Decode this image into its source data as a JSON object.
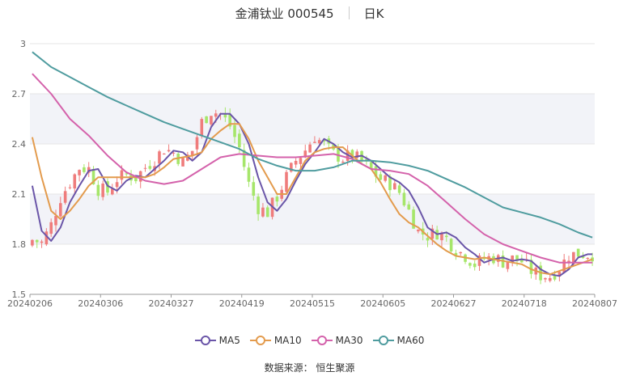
{
  "header": {
    "stock_title": "金浦钛业 000545",
    "period": "日K"
  },
  "source": {
    "label": "数据来源：",
    "value": "恒生聚源"
  },
  "colors": {
    "up": "#ef7c7c",
    "down": "#a6e66a",
    "ma5": "#6a55a8",
    "ma10": "#e39b4d",
    "ma30": "#d462ab",
    "ma60": "#4f9c9f",
    "band": "#f2f3f8",
    "grid": "#e6e6e6"
  },
  "chart_data": {
    "type": "candlestick",
    "ylim": [
      1.5,
      3.0
    ],
    "yticks": [
      "1.5",
      "1.8",
      "2.1",
      "2.4",
      "2.7",
      "3"
    ],
    "xtick_labels": [
      "20240206",
      "20240306",
      "20240327",
      "20240419",
      "20240515",
      "20240605",
      "20240627",
      "20240718",
      "20240807"
    ],
    "num_days": 120,
    "legend": [
      "MA5",
      "MA10",
      "MA30",
      "MA60"
    ],
    "ma_series": [
      {
        "name": "MA5",
        "points": [
          [
            0,
            2.15
          ],
          [
            2,
            1.88
          ],
          [
            4,
            1.82
          ],
          [
            6,
            1.9
          ],
          [
            8,
            2.05
          ],
          [
            10,
            2.15
          ],
          [
            12,
            2.24
          ],
          [
            14,
            2.25
          ],
          [
            16,
            2.15
          ],
          [
            18,
            2.12
          ],
          [
            20,
            2.18
          ],
          [
            22,
            2.21
          ],
          [
            24,
            2.2
          ],
          [
            26,
            2.25
          ],
          [
            28,
            2.3
          ],
          [
            30,
            2.36
          ],
          [
            32,
            2.35
          ],
          [
            34,
            2.3
          ],
          [
            36,
            2.35
          ],
          [
            38,
            2.5
          ],
          [
            40,
            2.58
          ],
          [
            42,
            2.58
          ],
          [
            44,
            2.52
          ],
          [
            46,
            2.4
          ],
          [
            48,
            2.2
          ],
          [
            50,
            2.05
          ],
          [
            52,
            2.0
          ],
          [
            54,
            2.07
          ],
          [
            56,
            2.18
          ],
          [
            58,
            2.28
          ],
          [
            60,
            2.35
          ],
          [
            62,
            2.43
          ],
          [
            64,
            2.4
          ],
          [
            66,
            2.35
          ],
          [
            68,
            2.32
          ],
          [
            70,
            2.33
          ],
          [
            72,
            2.3
          ],
          [
            74,
            2.25
          ],
          [
            76,
            2.2
          ],
          [
            78,
            2.17
          ],
          [
            80,
            2.12
          ],
          [
            82,
            2.02
          ],
          [
            84,
            1.9
          ],
          [
            86,
            1.86
          ],
          [
            88,
            1.87
          ],
          [
            90,
            1.84
          ],
          [
            92,
            1.78
          ],
          [
            94,
            1.74
          ],
          [
            96,
            1.69
          ],
          [
            98,
            1.71
          ],
          [
            100,
            1.72
          ],
          [
            102,
            1.7
          ],
          [
            104,
            1.71
          ],
          [
            106,
            1.7
          ],
          [
            108,
            1.65
          ],
          [
            110,
            1.62
          ],
          [
            112,
            1.61
          ],
          [
            114,
            1.65
          ],
          [
            116,
            1.72
          ],
          [
            118,
            1.74
          ],
          [
            119,
            1.74
          ]
        ]
      },
      {
        "name": "MA10",
        "points": [
          [
            0,
            2.44
          ],
          [
            2,
            2.2
          ],
          [
            4,
            2.0
          ],
          [
            6,
            1.95
          ],
          [
            8,
            2.0
          ],
          [
            10,
            2.07
          ],
          [
            12,
            2.15
          ],
          [
            14,
            2.2
          ],
          [
            16,
            2.2
          ],
          [
            18,
            2.2
          ],
          [
            20,
            2.2
          ],
          [
            22,
            2.2
          ],
          [
            24,
            2.2
          ],
          [
            26,
            2.22
          ],
          [
            28,
            2.26
          ],
          [
            30,
            2.31
          ],
          [
            32,
            2.32
          ],
          [
            34,
            2.33
          ],
          [
            36,
            2.35
          ],
          [
            38,
            2.43
          ],
          [
            40,
            2.48
          ],
          [
            42,
            2.52
          ],
          [
            44,
            2.52
          ],
          [
            46,
            2.43
          ],
          [
            48,
            2.3
          ],
          [
            50,
            2.2
          ],
          [
            52,
            2.1
          ],
          [
            54,
            2.1
          ],
          [
            56,
            2.2
          ],
          [
            58,
            2.3
          ],
          [
            60,
            2.35
          ],
          [
            62,
            2.37
          ],
          [
            64,
            2.38
          ],
          [
            66,
            2.38
          ],
          [
            68,
            2.33
          ],
          [
            70,
            2.28
          ],
          [
            72,
            2.25
          ],
          [
            74,
            2.17
          ],
          [
            76,
            2.07
          ],
          [
            78,
            1.98
          ],
          [
            80,
            1.93
          ],
          [
            82,
            1.9
          ],
          [
            84,
            1.85
          ],
          [
            86,
            1.8
          ],
          [
            88,
            1.76
          ],
          [
            90,
            1.73
          ],
          [
            92,
            1.72
          ],
          [
            94,
            1.71
          ],
          [
            96,
            1.72
          ],
          [
            98,
            1.71
          ],
          [
            100,
            1.7
          ],
          [
            102,
            1.69
          ],
          [
            104,
            1.68
          ],
          [
            106,
            1.65
          ],
          [
            108,
            1.63
          ],
          [
            110,
            1.62
          ],
          [
            112,
            1.64
          ],
          [
            114,
            1.66
          ],
          [
            116,
            1.68
          ],
          [
            118,
            1.7
          ],
          [
            119,
            1.71
          ]
        ]
      },
      {
        "name": "MA30",
        "points": [
          [
            0,
            2.82
          ],
          [
            4,
            2.7
          ],
          [
            8,
            2.55
          ],
          [
            12,
            2.45
          ],
          [
            16,
            2.33
          ],
          [
            20,
            2.23
          ],
          [
            24,
            2.18
          ],
          [
            28,
            2.16
          ],
          [
            32,
            2.18
          ],
          [
            36,
            2.25
          ],
          [
            40,
            2.32
          ],
          [
            44,
            2.34
          ],
          [
            48,
            2.33
          ],
          [
            52,
            2.32
          ],
          [
            56,
            2.32
          ],
          [
            60,
            2.33
          ],
          [
            64,
            2.34
          ],
          [
            68,
            2.31
          ],
          [
            72,
            2.25
          ],
          [
            76,
            2.24
          ],
          [
            80,
            2.22
          ],
          [
            84,
            2.15
          ],
          [
            88,
            2.05
          ],
          [
            92,
            1.95
          ],
          [
            96,
            1.86
          ],
          [
            100,
            1.8
          ],
          [
            104,
            1.76
          ],
          [
            108,
            1.72
          ],
          [
            112,
            1.69
          ],
          [
            116,
            1.69
          ],
          [
            119,
            1.69
          ]
        ]
      },
      {
        "name": "MA60",
        "points": [
          [
            0,
            2.95
          ],
          [
            4,
            2.86
          ],
          [
            8,
            2.8
          ],
          [
            12,
            2.74
          ],
          [
            16,
            2.68
          ],
          [
            20,
            2.63
          ],
          [
            24,
            2.58
          ],
          [
            28,
            2.53
          ],
          [
            32,
            2.49
          ],
          [
            36,
            2.45
          ],
          [
            40,
            2.41
          ],
          [
            44,
            2.37
          ],
          [
            48,
            2.31
          ],
          [
            52,
            2.27
          ],
          [
            56,
            2.24
          ],
          [
            60,
            2.24
          ],
          [
            64,
            2.26
          ],
          [
            68,
            2.3
          ],
          [
            72,
            2.3
          ],
          [
            76,
            2.29
          ],
          [
            80,
            2.27
          ],
          [
            84,
            2.24
          ],
          [
            88,
            2.19
          ],
          [
            92,
            2.14
          ],
          [
            96,
            2.08
          ],
          [
            100,
            2.02
          ],
          [
            104,
            1.99
          ],
          [
            108,
            1.96
          ],
          [
            112,
            1.92
          ],
          [
            116,
            1.87
          ],
          [
            119,
            1.84
          ]
        ]
      }
    ]
  }
}
